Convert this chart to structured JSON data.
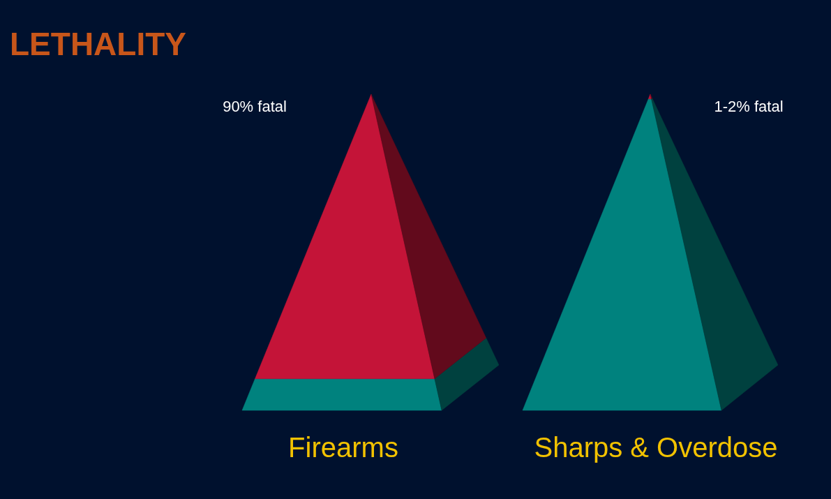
{
  "chart_data": {
    "type": "other",
    "title": "LETHALITY",
    "categories": [
      "Firearms",
      "Sharps & Overdose"
    ],
    "values": [
      90,
      1.5
    ],
    "value_labels": [
      "90% fatal",
      "1-2% fatal"
    ],
    "colors": [
      "#c41438",
      "#00827e"
    ]
  }
}
